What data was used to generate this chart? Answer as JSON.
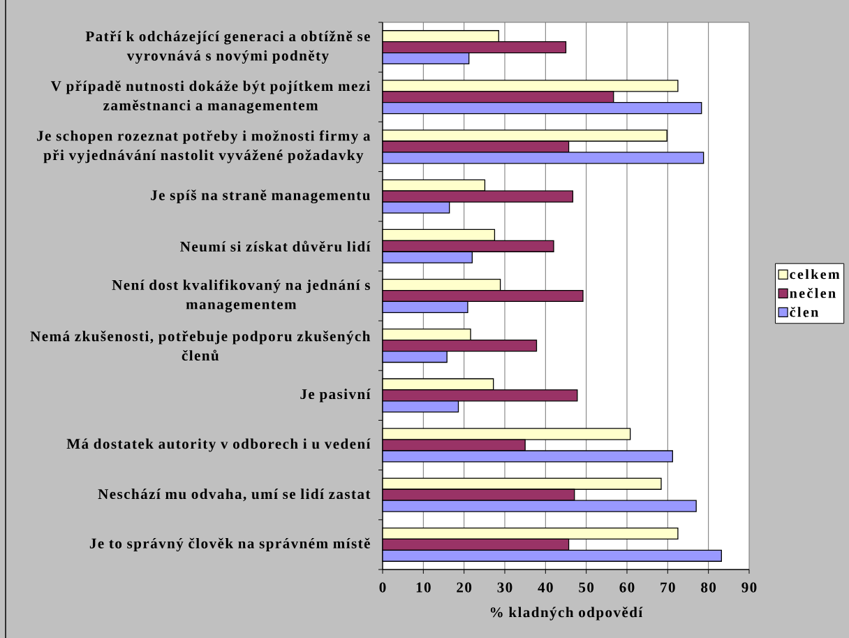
{
  "chart_data": {
    "type": "bar",
    "orientation": "horizontal",
    "xlabel": "% kladných odpovědí",
    "categories": [
      "Patří k odcházející generaci a obtížně se vyrovnává s novými podněty",
      "V případě nutnosti dokáže být pojítkem mezi zaměstnanci a managementem",
      "Je schopen rozeznat potřeby i možnosti firmy a při vyjednávání nastolit vyvážené požadavky",
      "Je spíš na straně managementu",
      "Neumí si získat důvěru lidí",
      "Není dost kvalifikovaný na jednání s managementem",
      "Nemá zkušenosti, potřebuje podporu zkušených členů",
      "Je pasivní",
      "Má dostatek autority v odborech i u vedení",
      "Neschází mu odvaha, umí se lidí zastat",
      "Je to správný člověk na správném místě"
    ],
    "series": [
      {
        "name": "celkem",
        "color": "#ffffcc",
        "values": [
          28.5,
          72.5,
          69.8,
          25.1,
          27.5,
          28.9,
          21.6,
          27.2,
          60.8,
          68.4,
          72.5
        ]
      },
      {
        "name": "nečlen",
        "color": "#993366",
        "values": [
          45.0,
          56.7,
          45.7,
          46.7,
          42.0,
          49.2,
          37.8,
          47.8,
          35.0,
          47.1,
          45.7
        ]
      },
      {
        "name": "člen",
        "color": "#9999ff",
        "values": [
          21.2,
          78.3,
          78.8,
          16.4,
          22.0,
          20.9,
          15.8,
          18.6,
          71.2,
          77.0,
          83.2
        ]
      }
    ],
    "xlim": [
      0,
      90
    ],
    "xticks": [
      0,
      10,
      20,
      30,
      40,
      50,
      60,
      70,
      80,
      90
    ],
    "grid": "x",
    "legend": "right"
  }
}
